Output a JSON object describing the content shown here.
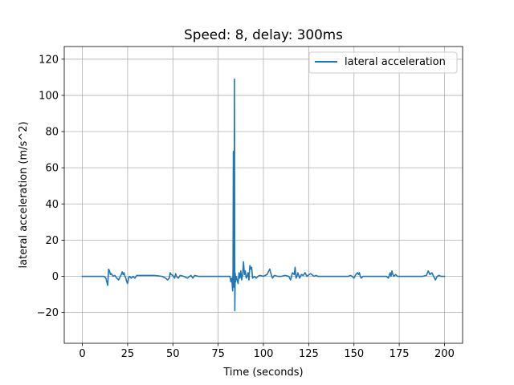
{
  "chart_data": {
    "type": "line",
    "title": "Speed: 8, delay: 300ms",
    "xlabel": "Time (seconds)",
    "ylabel": "lateral acceleration (m/s^2)",
    "xlim": [
      -10,
      210
    ],
    "ylim": [
      -37,
      127
    ],
    "xticks": [
      0,
      25,
      50,
      75,
      100,
      125,
      150,
      175,
      200
    ],
    "yticks": [
      -20,
      0,
      20,
      40,
      60,
      80,
      100,
      120
    ],
    "grid": true,
    "legend_position": "top-right",
    "series": [
      {
        "name": "lateral acceleration",
        "color": "#1f77b4",
        "points": [
          [
            0,
            0
          ],
          [
            5,
            0
          ],
          [
            10,
            0
          ],
          [
            12,
            0
          ],
          [
            13,
            -1
          ],
          [
            13.5,
            -3
          ],
          [
            14,
            -5
          ],
          [
            14.5,
            4
          ],
          [
            15,
            3
          ],
          [
            15.5,
            1
          ],
          [
            16,
            1.5
          ],
          [
            17,
            0
          ],
          [
            18,
            0.5
          ],
          [
            19,
            -1
          ],
          [
            20,
            -2
          ],
          [
            21,
            0
          ],
          [
            21.5,
            1
          ],
          [
            22,
            2.5
          ],
          [
            22.5,
            1
          ],
          [
            23,
            2
          ],
          [
            23.5,
            0
          ],
          [
            24,
            -1
          ],
          [
            24.5,
            -3
          ],
          [
            25,
            -4
          ],
          [
            25.5,
            -1
          ],
          [
            26,
            0
          ],
          [
            27,
            -1
          ],
          [
            28,
            0
          ],
          [
            29,
            -1
          ],
          [
            30,
            0.5
          ],
          [
            32,
            0.5
          ],
          [
            35,
            0.5
          ],
          [
            40,
            0.5
          ],
          [
            44,
            0
          ],
          [
            46,
            -1
          ],
          [
            47,
            -2
          ],
          [
            48,
            -1
          ],
          [
            48.5,
            2
          ],
          [
            49,
            1
          ],
          [
            50,
            0.5
          ],
          [
            51,
            -1
          ],
          [
            51.5,
            1.5
          ],
          [
            52,
            0
          ],
          [
            53,
            -1
          ],
          [
            54,
            0.5
          ],
          [
            56,
            0
          ],
          [
            58,
            -1
          ],
          [
            60,
            0.5
          ],
          [
            61,
            -1
          ],
          [
            62,
            0.5
          ],
          [
            64,
            0
          ],
          [
            66,
            0
          ],
          [
            70,
            0
          ],
          [
            75,
            0
          ],
          [
            80,
            0
          ],
          [
            81.5,
            0
          ],
          [
            82,
            -3
          ],
          [
            82.5,
            -1
          ],
          [
            83,
            -8
          ],
          [
            83.2,
            3
          ],
          [
            83.4,
            69
          ],
          [
            83.6,
            -6
          ],
          [
            83.8,
            2
          ],
          [
            84,
            109
          ],
          [
            84.2,
            -19
          ],
          [
            84.4,
            2
          ],
          [
            84.6,
            -3
          ],
          [
            85,
            0
          ],
          [
            85.5,
            -2
          ],
          [
            86,
            -4
          ],
          [
            86.5,
            2
          ],
          [
            87,
            -1
          ],
          [
            87.5,
            3
          ],
          [
            88,
            -2
          ],
          [
            88.5,
            1
          ],
          [
            89,
            8
          ],
          [
            89.5,
            1
          ],
          [
            90,
            3
          ],
          [
            90.5,
            -1
          ],
          [
            91,
            0
          ],
          [
            91.5,
            2
          ],
          [
            92,
            -2
          ],
          [
            92.5,
            6
          ],
          [
            93,
            4
          ],
          [
            93.5,
            5
          ],
          [
            94,
            -1
          ],
          [
            95,
            0
          ],
          [
            96,
            -1
          ],
          [
            97,
            0
          ],
          [
            98,
            0.5
          ],
          [
            100,
            0
          ],
          [
            101,
            0.5
          ],
          [
            102,
            1
          ],
          [
            103,
            3
          ],
          [
            103.5,
            4
          ],
          [
            104,
            2
          ],
          [
            105,
            -1
          ],
          [
            106,
            0.5
          ],
          [
            108,
            0
          ],
          [
            110,
            0
          ],
          [
            112,
            0.5
          ],
          [
            114,
            0
          ],
          [
            115,
            -2
          ],
          [
            116,
            2
          ],
          [
            117,
            1
          ],
          [
            117.5,
            5
          ],
          [
            118,
            -1
          ],
          [
            118.5,
            0
          ],
          [
            119,
            2
          ],
          [
            120,
            -1
          ],
          [
            121,
            1
          ],
          [
            122,
            0.5
          ],
          [
            123,
            2
          ],
          [
            124,
            0
          ],
          [
            126,
            1.5
          ],
          [
            128,
            0
          ],
          [
            129,
            0.5
          ],
          [
            130,
            0
          ],
          [
            135,
            0
          ],
          [
            140,
            0
          ],
          [
            145,
            0
          ],
          [
            147,
            0
          ],
          [
            148,
            0.5
          ],
          [
            149,
            0
          ],
          [
            150,
            -1
          ],
          [
            151,
            1
          ],
          [
            152,
            2
          ],
          [
            152.5,
            1
          ],
          [
            153,
            2
          ],
          [
            153.5,
            0
          ],
          [
            154,
            -1
          ],
          [
            155,
            0
          ],
          [
            157,
            0
          ],
          [
            160,
            0
          ],
          [
            165,
            0
          ],
          [
            168,
            0
          ],
          [
            169,
            -1
          ],
          [
            170,
            2
          ],
          [
            170.5,
            0
          ],
          [
            171,
            3
          ],
          [
            171.5,
            1
          ],
          [
            172,
            0
          ],
          [
            173,
            1
          ],
          [
            174,
            0
          ],
          [
            176,
            0
          ],
          [
            180,
            0
          ],
          [
            185,
            0
          ],
          [
            188,
            0
          ],
          [
            190,
            0.5
          ],
          [
            191,
            3
          ],
          [
            191.5,
            2
          ],
          [
            192,
            1
          ],
          [
            193,
            2
          ],
          [
            194,
            0
          ],
          [
            195,
            -2
          ],
          [
            196,
            0
          ],
          [
            197,
            0.5
          ],
          [
            198,
            0
          ],
          [
            200,
            0
          ]
        ]
      }
    ]
  }
}
